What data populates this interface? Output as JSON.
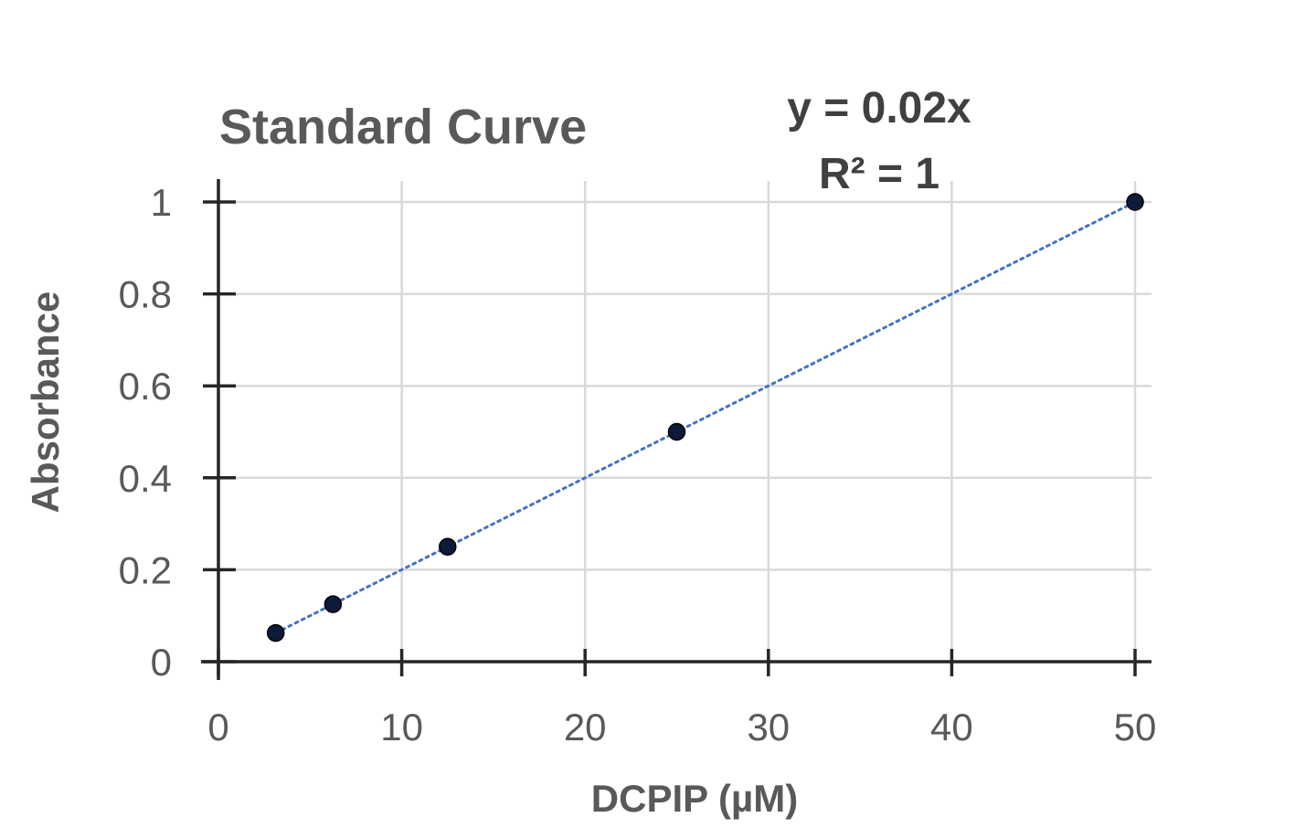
{
  "chart_data": {
    "type": "scatter",
    "title": "Standard Curve",
    "xlabel": "DCPIP (µM)",
    "ylabel": "Absorbance",
    "xlim": [
      0,
      50
    ],
    "ylim": [
      0,
      1
    ],
    "x_ticks": [
      0,
      10,
      20,
      30,
      40,
      50
    ],
    "y_ticks": [
      0,
      0.2,
      0.4,
      0.6,
      0.8,
      1
    ],
    "x_tick_labels": [
      "0",
      "10",
      "20",
      "30",
      "40",
      "50"
    ],
    "y_tick_labels": [
      "0",
      "0.2",
      "0.4",
      "0.6",
      "0.8",
      "1"
    ],
    "grid": true,
    "series": [
      {
        "x": [
          3.125,
          6.25,
          12.5,
          25,
          50
        ],
        "y": [
          0.0625,
          0.125,
          0.25,
          0.5,
          1.0
        ],
        "marker_color": "#0d1a3a"
      }
    ],
    "trendline": {
      "type": "linear",
      "slope": 0.02,
      "intercept": 0,
      "style": "dotted",
      "color": "#4472c4",
      "x_range": [
        3.125,
        50
      ]
    },
    "annotations": {
      "equation": "y = 0.02x",
      "r_squared": "R² = 1"
    }
  }
}
